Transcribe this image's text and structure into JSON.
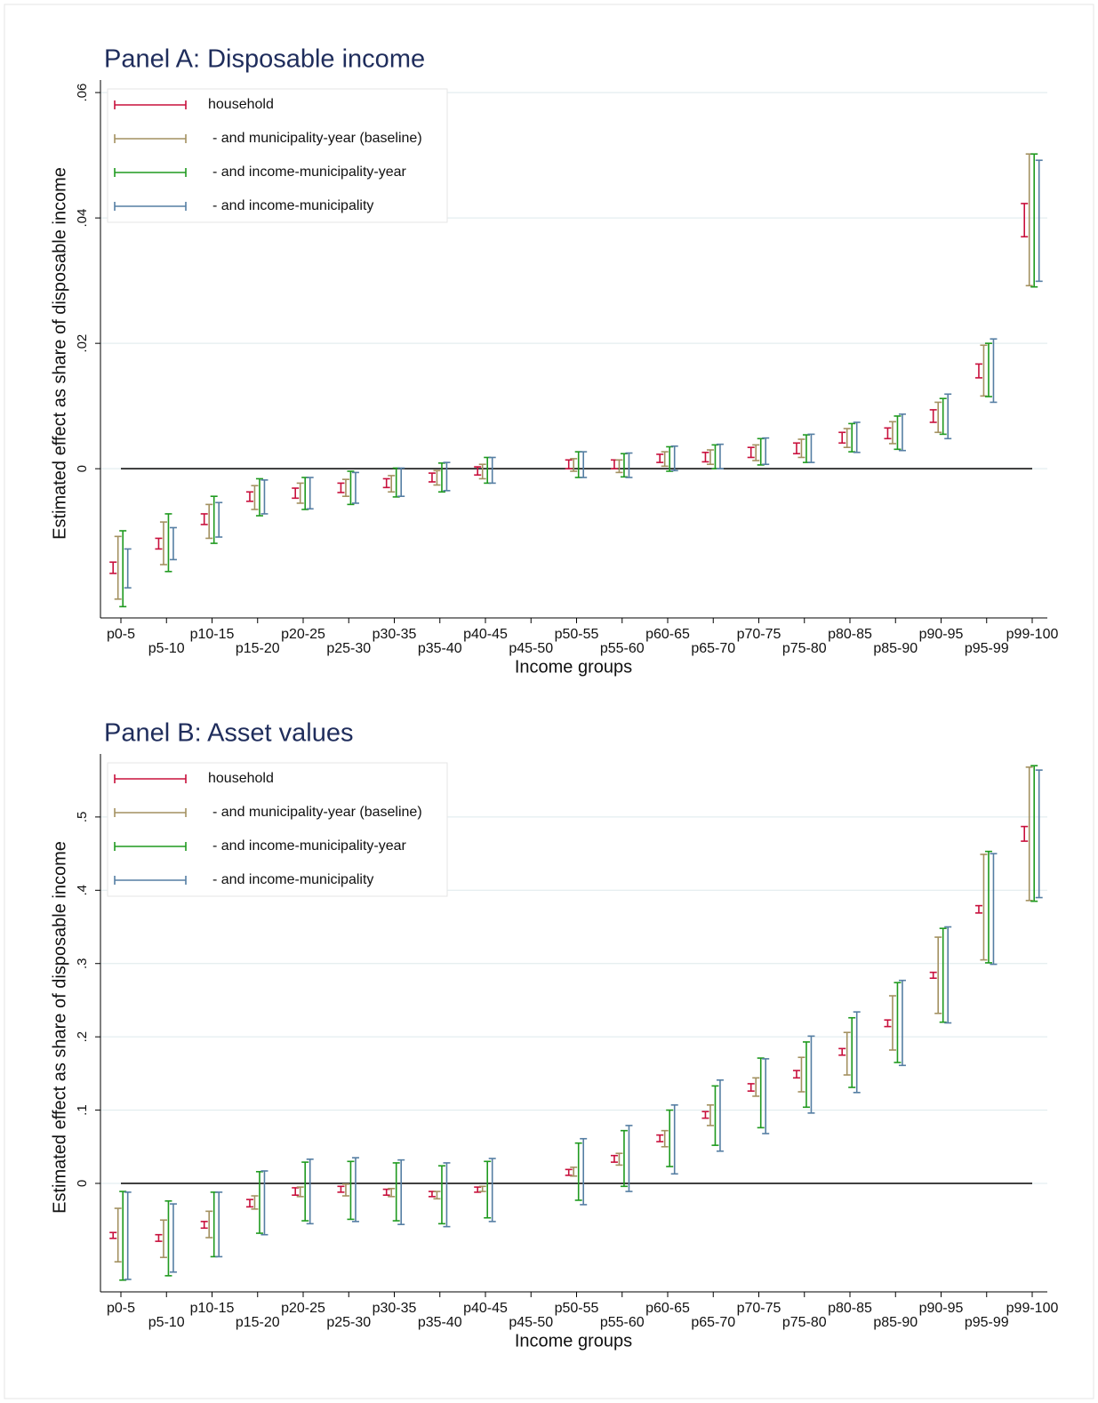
{
  "chart_data": [
    {
      "type": "errorbar",
      "title": "Panel A: Disposable income",
      "xlabel": "Income groups",
      "ylabel": "Estimated effect as share of disposable income",
      "categories": [
        "p0-5",
        "p5-10",
        "p10-15",
        "p15-20",
        "p20-25",
        "p25-30",
        "p30-35",
        "p35-40",
        "p40-45",
        "p45-50",
        "p50-55",
        "p55-60",
        "p60-65",
        "p65-70",
        "p70-75",
        "p75-80",
        "p80-85",
        "p85-90",
        "p90-95",
        "p95-99",
        "p99-100"
      ],
      "ylim": [
        -0.0238,
        0.062
      ],
      "yticks": [
        0,
        {
          "value": 0.02,
          "label": ".02"
        },
        {
          "value": 0.04,
          "label": ".04"
        },
        {
          "value": 0.06,
          "label": ".06"
        }
      ],
      "grid": true,
      "legend_position": "top-left",
      "series": [
        {
          "name": "household",
          "color": "#c8103c",
          "low": [
            -0.0167,
            -0.0128,
            -0.0089,
            -0.0052,
            -0.0047,
            -0.0038,
            -0.003,
            -0.0021,
            -0.001,
            null,
            0,
            0,
            0.001,
            0.0011,
            0.0018,
            0.0024,
            0.0041,
            0.0048,
            0.0074,
            0.0145,
            0.037
          ],
          "high": [
            -0.0149,
            -0.0111,
            -0.0072,
            -0.0037,
            -0.0031,
            -0.0023,
            -0.0016,
            -0.0007,
            0.0003,
            null,
            0.0014,
            0.0014,
            0.0023,
            0.0026,
            0.0034,
            0.0041,
            0.0058,
            0.0065,
            0.0094,
            0.0167,
            0.0423
          ]
        },
        {
          "name": "- and municipality-year (baseline)",
          "color": "#a39160",
          "low": [
            -0.0208,
            -0.0153,
            -0.0111,
            -0.0065,
            -0.0055,
            -0.0044,
            -0.0037,
            -0.0026,
            -0.0016,
            null,
            -0.0004,
            -0.0006,
            0.0004,
            0.0007,
            0.0013,
            0.0018,
            0.0034,
            0.004,
            0.0058,
            0.0116,
            0.0292
          ],
          "high": [
            -0.0108,
            -0.0085,
            -0.0057,
            -0.0027,
            -0.0023,
            -0.0017,
            -0.0011,
            -0.0003,
            0.0007,
            null,
            0.0016,
            0.0014,
            0.0027,
            0.003,
            0.0038,
            0.0047,
            0.0064,
            0.0075,
            0.0106,
            0.0197,
            0.0502
          ]
        },
        {
          "name": "- and income-municipality-year",
          "color": "#1f9a1f",
          "low": [
            -0.022,
            -0.0164,
            -0.0119,
            -0.0075,
            -0.0065,
            -0.0057,
            -0.0045,
            -0.0037,
            -0.0023,
            null,
            -0.0014,
            -0.0013,
            -0.0004,
            0,
            0.0006,
            0.001,
            0.0027,
            0.0031,
            0.0055,
            0.0115,
            0.029
          ],
          "high": [
            -0.0099,
            -0.0072,
            -0.0044,
            -0.0016,
            -0.0014,
            -0.0004,
            0.0001,
            0.0009,
            0.0018,
            null,
            0.0027,
            0.0024,
            0.0035,
            0.0038,
            0.0048,
            0.0054,
            0.0072,
            0.0084,
            0.0112,
            0.02,
            0.0502
          ]
        },
        {
          "name": "- and income-municipality",
          "color": "#557ea3",
          "low": [
            -0.019,
            -0.0145,
            -0.0109,
            -0.0072,
            -0.0064,
            -0.0055,
            -0.0044,
            -0.0035,
            -0.0023,
            null,
            -0.0014,
            -0.0014,
            -0.0003,
            0,
            0.0007,
            0.001,
            0.0026,
            0.0029,
            0.0048,
            0.0106,
            0.0299
          ],
          "high": [
            -0.0128,
            -0.0094,
            -0.0054,
            -0.0018,
            -0.0014,
            -0.0006,
            0.0001,
            0.001,
            0.0018,
            null,
            0.0027,
            0.0025,
            0.0036,
            0.0039,
            0.0049,
            0.0055,
            0.0074,
            0.0087,
            0.0119,
            0.0207,
            0.0492
          ]
        }
      ]
    },
    {
      "type": "errorbar",
      "title": "Panel B: Asset values",
      "xlabel": "Income groups",
      "ylabel": "Estimated effect as share of disposable income",
      "categories": [
        "p0-5",
        "p5-10",
        "p10-15",
        "p15-20",
        "p20-25",
        "p25-30",
        "p30-35",
        "p35-40",
        "p40-45",
        "p45-50",
        "p50-55",
        "p55-60",
        "p60-65",
        "p65-70",
        "p70-75",
        "p75-80",
        "p80-85",
        "p85-90",
        "p90-95",
        "p95-99",
        "p99-100"
      ],
      "ylim": [
        -0.148,
        0.586
      ],
      "yticks": [
        0,
        {
          "value": 0.1,
          "label": ".1"
        },
        {
          "value": 0.2,
          "label": ".2"
        },
        {
          "value": 0.3,
          "label": ".3"
        },
        {
          "value": 0.4,
          "label": ".4"
        },
        {
          "value": 0.5,
          "label": ".5"
        }
      ],
      "grid": true,
      "legend_position": "top-left",
      "series": [
        {
          "name": "household",
          "color": "#c8103c",
          "low": [
            -0.075,
            -0.079,
            -0.061,
            -0.032,
            -0.016,
            -0.012,
            -0.016,
            -0.018,
            -0.012,
            null,
            0.011,
            0.029,
            0.057,
            0.089,
            0.126,
            0.144,
            0.175,
            0.214,
            0.28,
            0.369,
            0.467
          ],
          "high": [
            -0.067,
            -0.07,
            -0.052,
            -0.022,
            -0.006,
            -0.004,
            -0.008,
            -0.011,
            -0.005,
            null,
            0.019,
            0.038,
            0.066,
            0.098,
            0.136,
            0.154,
            0.184,
            0.223,
            0.288,
            0.379,
            0.487
          ]
        },
        {
          "name": "- and municipality-year (baseline)",
          "color": "#a39160",
          "low": [
            -0.107,
            -0.101,
            -0.074,
            -0.035,
            -0.018,
            -0.017,
            -0.018,
            -0.021,
            -0.011,
            null,
            0.01,
            0.025,
            0.05,
            0.079,
            0.119,
            0.125,
            0.148,
            0.182,
            0.232,
            0.305,
            0.386
          ],
          "high": [
            -0.034,
            -0.05,
            -0.038,
            -0.017,
            -0.005,
            -0.001,
            -0.007,
            -0.011,
            -0.004,
            null,
            0.022,
            0.041,
            0.072,
            0.107,
            0.144,
            0.172,
            0.206,
            0.256,
            0.336,
            0.449,
            0.568
          ]
        },
        {
          "name": "- and income-municipality-year",
          "color": "#1f9a1f",
          "low": [
            -0.132,
            -0.126,
            -0.1,
            -0.068,
            -0.051,
            -0.049,
            -0.051,
            -0.055,
            -0.047,
            null,
            -0.023,
            -0.004,
            0.023,
            0.052,
            0.076,
            0.104,
            0.131,
            0.165,
            0.22,
            0.301,
            0.385
          ],
          "high": [
            -0.011,
            -0.024,
            -0.012,
            0.016,
            0.029,
            0.03,
            0.028,
            0.024,
            0.03,
            null,
            0.055,
            0.072,
            0.1,
            0.133,
            0.171,
            0.193,
            0.226,
            0.274,
            0.348,
            0.453,
            0.57
          ]
        },
        {
          "name": "- and income-municipality",
          "color": "#557ea3",
          "low": [
            -0.131,
            -0.121,
            -0.1,
            -0.07,
            -0.055,
            -0.052,
            -0.056,
            -0.059,
            -0.052,
            null,
            -0.029,
            -0.011,
            0.013,
            0.044,
            0.068,
            0.096,
            0.124,
            0.161,
            0.219,
            0.299,
            0.39
          ],
          "high": [
            -0.012,
            -0.028,
            -0.012,
            0.017,
            0.033,
            0.035,
            0.032,
            0.028,
            0.034,
            null,
            0.061,
            0.079,
            0.107,
            0.141,
            0.17,
            0.201,
            0.234,
            0.277,
            0.35,
            0.45,
            0.564
          ]
        }
      ]
    }
  ]
}
